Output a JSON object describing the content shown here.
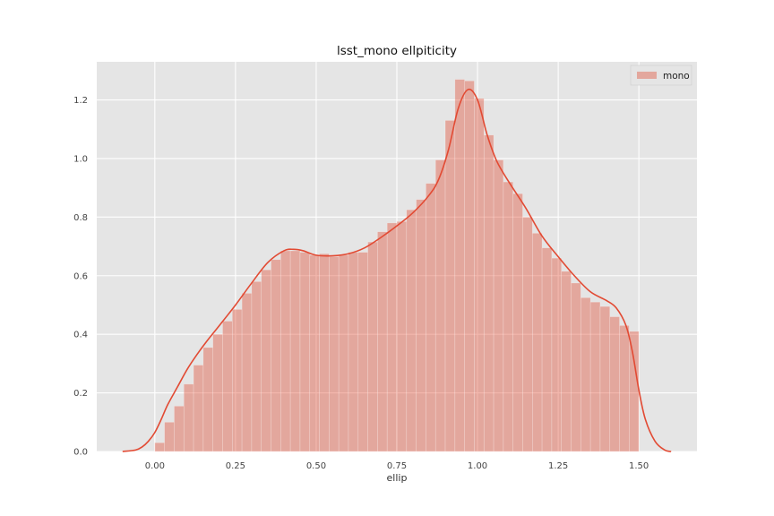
{
  "chart_data": {
    "type": "bar",
    "title": "lsst_mono ellpiticity",
    "xlabel": "ellip",
    "ylabel": "",
    "xlim": [
      -0.18,
      1.68
    ],
    "ylim": [
      0,
      1.33
    ],
    "xticks": [
      0.0,
      0.25,
      0.5,
      0.75,
      1.0,
      1.25,
      1.5
    ],
    "xtick_labels": [
      "0.00",
      "0.25",
      "0.50",
      "0.75",
      "1.00",
      "1.25",
      "1.50"
    ],
    "yticks": [
      0.0,
      0.2,
      0.4,
      0.6,
      0.8,
      1.0,
      1.2
    ],
    "ytick_labels": [
      "0.0",
      "0.2",
      "0.4",
      "0.6",
      "0.8",
      "1.0",
      "1.2"
    ],
    "grid": true,
    "legend_position": "top-right",
    "colors": {
      "hist": "#e24a33",
      "kde": "#e24a33",
      "background": "#e5e5e5"
    },
    "series": [
      {
        "name": "mono",
        "kind": "histogram",
        "bin_edges": [
          0.0,
          0.03,
          0.06,
          0.09,
          0.12,
          0.15,
          0.18,
          0.21,
          0.24,
          0.27,
          0.3,
          0.33,
          0.36,
          0.39,
          0.42,
          0.45,
          0.48,
          0.51,
          0.54,
          0.57,
          0.6,
          0.63,
          0.66,
          0.69,
          0.72,
          0.75,
          0.78,
          0.81,
          0.84,
          0.87,
          0.9,
          0.93,
          0.96,
          0.99,
          1.02,
          1.05,
          1.08,
          1.11,
          1.14,
          1.17,
          1.2,
          1.23,
          1.26,
          1.29,
          1.32,
          1.35,
          1.38,
          1.41,
          1.44,
          1.47,
          1.5
        ],
        "values": [
          0.03,
          0.1,
          0.155,
          0.23,
          0.295,
          0.355,
          0.4,
          0.445,
          0.485,
          0.54,
          0.58,
          0.62,
          0.655,
          0.685,
          0.685,
          0.68,
          0.67,
          0.675,
          0.665,
          0.67,
          0.68,
          0.68,
          0.715,
          0.75,
          0.78,
          0.785,
          0.825,
          0.86,
          0.915,
          0.995,
          1.13,
          1.27,
          1.265,
          1.205,
          1.08,
          0.995,
          0.92,
          0.88,
          0.8,
          0.745,
          0.695,
          0.66,
          0.615,
          0.575,
          0.525,
          0.51,
          0.495,
          0.46,
          0.43,
          0.41
        ]
      },
      {
        "name": "",
        "kind": "kde",
        "x": [
          -0.1,
          -0.06,
          -0.04,
          -0.02,
          0.0,
          0.02,
          0.04,
          0.07,
          0.1,
          0.13,
          0.16,
          0.2,
          0.25,
          0.3,
          0.35,
          0.4,
          0.43,
          0.46,
          0.5,
          0.55,
          0.6,
          0.65,
          0.7,
          0.75,
          0.8,
          0.85,
          0.88,
          0.91,
          0.94,
          0.97,
          1.0,
          1.03,
          1.06,
          1.1,
          1.15,
          1.2,
          1.25,
          1.3,
          1.35,
          1.4,
          1.43,
          1.46,
          1.48,
          1.5,
          1.52,
          1.55,
          1.58,
          1.6
        ],
        "y": [
          0.0,
          0.005,
          0.015,
          0.035,
          0.065,
          0.11,
          0.16,
          0.22,
          0.28,
          0.33,
          0.375,
          0.43,
          0.5,
          0.575,
          0.645,
          0.685,
          0.69,
          0.685,
          0.67,
          0.668,
          0.675,
          0.695,
          0.73,
          0.77,
          0.815,
          0.875,
          0.93,
          1.03,
          1.17,
          1.235,
          1.2,
          1.08,
          0.99,
          0.915,
          0.83,
          0.735,
          0.665,
          0.6,
          0.545,
          0.515,
          0.49,
          0.43,
          0.34,
          0.21,
          0.11,
          0.035,
          0.005,
          0.0
        ]
      }
    ]
  }
}
